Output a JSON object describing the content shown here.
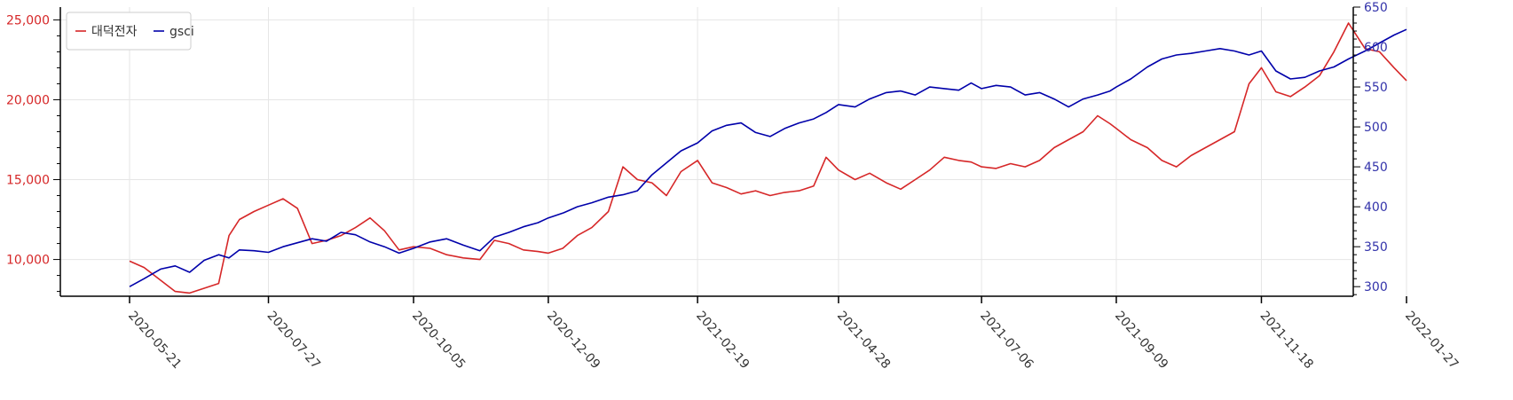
{
  "chart_data": {
    "type": "line",
    "title": "",
    "xlabel": "",
    "ylabel_left": "",
    "ylabel_right": "",
    "grid": true,
    "legend_position": "top-left",
    "x_ticks": [
      "2020-05-21",
      "2020-07-27",
      "2020-10-05",
      "2020-12-09",
      "2021-02-19",
      "2021-04-28",
      "2021-07-06",
      "2021-09-09",
      "2021-11-18",
      "2022-01-27"
    ],
    "y_left": {
      "lim": [
        7700,
        25800
      ],
      "ticks": [
        10000,
        15000,
        20000,
        25000
      ],
      "tick_labels": [
        "10,000",
        "15,000",
        "20,000",
        "25,000"
      ],
      "color": "#d62728"
    },
    "y_right": {
      "lim": [
        288,
        650
      ],
      "ticks": [
        300,
        350,
        400,
        450,
        500,
        550,
        600,
        650
      ],
      "tick_labels": [
        "300",
        "350",
        "400",
        "450",
        "500",
        "550",
        "600",
        "650"
      ],
      "color": "#3333aa"
    },
    "series": [
      {
        "name": "대덕전자",
        "axis": "left",
        "color": "#d62728",
        "x": [
          "2020-05-21",
          "2020-05-28",
          "2020-06-05",
          "2020-06-12",
          "2020-06-19",
          "2020-06-26",
          "2020-07-03",
          "2020-07-08",
          "2020-07-13",
          "2020-07-20",
          "2020-07-27",
          "2020-08-03",
          "2020-08-10",
          "2020-08-17",
          "2020-08-24",
          "2020-08-31",
          "2020-09-07",
          "2020-09-14",
          "2020-09-21",
          "2020-09-28",
          "2020-10-05",
          "2020-10-13",
          "2020-10-21",
          "2020-10-29",
          "2020-11-06",
          "2020-11-13",
          "2020-11-20",
          "2020-11-27",
          "2020-12-04",
          "2020-12-09",
          "2020-12-16",
          "2020-12-23",
          "2020-12-30",
          "2021-01-07",
          "2021-01-14",
          "2021-01-21",
          "2021-01-28",
          "2021-02-04",
          "2021-02-11",
          "2021-02-19",
          "2021-02-26",
          "2021-03-05",
          "2021-03-12",
          "2021-03-19",
          "2021-03-26",
          "2021-04-02",
          "2021-04-09",
          "2021-04-16",
          "2021-04-22",
          "2021-04-28",
          "2021-05-06",
          "2021-05-13",
          "2021-05-21",
          "2021-05-28",
          "2021-06-04",
          "2021-06-11",
          "2021-06-18",
          "2021-06-25",
          "2021-07-01",
          "2021-07-06",
          "2021-07-13",
          "2021-07-20",
          "2021-07-27",
          "2021-08-03",
          "2021-08-10",
          "2021-08-17",
          "2021-08-24",
          "2021-08-31",
          "2021-09-06",
          "2021-09-09",
          "2021-09-16",
          "2021-09-24",
          "2021-10-01",
          "2021-10-08",
          "2021-10-15",
          "2021-10-22",
          "2021-10-29",
          "2021-11-05",
          "2021-11-12",
          "2021-11-18",
          "2021-11-25",
          "2021-12-02",
          "2021-12-09",
          "2021-12-16",
          "2021-12-23",
          "2021-12-30",
          "2022-01-07",
          "2022-01-14",
          "2022-01-21",
          "2022-01-27"
        ],
        "values": [
          9900,
          9500,
          8700,
          8000,
          7900,
          8200,
          8500,
          11500,
          12500,
          13000,
          13400,
          13800,
          13200,
          11000,
          11200,
          11500,
          12000,
          12600,
          11800,
          10600,
          10800,
          10700,
          10300,
          10100,
          10000,
          11200,
          11000,
          10600,
          10500,
          10400,
          10700,
          11500,
          12000,
          13000,
          15800,
          15000,
          14800,
          14000,
          15500,
          16200,
          14800,
          14500,
          14100,
          14300,
          14000,
          14200,
          14300,
          14600,
          16400,
          15600,
          15000,
          15400,
          14800,
          14400,
          15000,
          15600,
          16400,
          16200,
          16100,
          15800,
          15700,
          16000,
          15800,
          16200,
          17000,
          17500,
          18000,
          19000,
          18500,
          18200,
          17500,
          17000,
          16200,
          15800,
          16500,
          17000,
          17500,
          18000,
          21000,
          22000,
          20500,
          20200,
          20800,
          21500,
          23000,
          24800,
          23200,
          23000,
          22000,
          21200
        ]
      },
      {
        "name": "gsci",
        "axis": "right",
        "color": "#0000aa",
        "x": [
          "2020-05-21",
          "2020-05-28",
          "2020-06-05",
          "2020-06-12",
          "2020-06-19",
          "2020-06-26",
          "2020-07-03",
          "2020-07-08",
          "2020-07-13",
          "2020-07-20",
          "2020-07-27",
          "2020-08-03",
          "2020-08-10",
          "2020-08-17",
          "2020-08-24",
          "2020-08-31",
          "2020-09-07",
          "2020-09-14",
          "2020-09-21",
          "2020-09-28",
          "2020-10-05",
          "2020-10-13",
          "2020-10-21",
          "2020-10-29",
          "2020-11-06",
          "2020-11-13",
          "2020-11-20",
          "2020-11-27",
          "2020-12-04",
          "2020-12-09",
          "2020-12-16",
          "2020-12-23",
          "2020-12-30",
          "2021-01-07",
          "2021-01-14",
          "2021-01-21",
          "2021-01-28",
          "2021-02-04",
          "2021-02-11",
          "2021-02-19",
          "2021-02-26",
          "2021-03-05",
          "2021-03-12",
          "2021-03-19",
          "2021-03-26",
          "2021-04-02",
          "2021-04-09",
          "2021-04-16",
          "2021-04-22",
          "2021-04-28",
          "2021-05-06",
          "2021-05-13",
          "2021-05-21",
          "2021-05-28",
          "2021-06-04",
          "2021-06-11",
          "2021-06-18",
          "2021-06-25",
          "2021-07-01",
          "2021-07-06",
          "2021-07-13",
          "2021-07-20",
          "2021-07-27",
          "2021-08-03",
          "2021-08-10",
          "2021-08-17",
          "2021-08-24",
          "2021-08-31",
          "2021-09-06",
          "2021-09-09",
          "2021-09-16",
          "2021-09-24",
          "2021-10-01",
          "2021-10-08",
          "2021-10-15",
          "2021-10-22",
          "2021-10-29",
          "2021-11-05",
          "2021-11-12",
          "2021-11-18",
          "2021-11-25",
          "2021-12-02",
          "2021-12-09",
          "2021-12-16",
          "2021-12-23",
          "2021-12-30",
          "2022-01-07",
          "2022-01-14",
          "2022-01-21",
          "2022-01-27"
        ],
        "values": [
          300,
          310,
          322,
          326,
          318,
          333,
          340,
          336,
          346,
          345,
          343,
          350,
          355,
          360,
          357,
          368,
          365,
          356,
          350,
          342,
          348,
          356,
          360,
          352,
          345,
          362,
          368,
          375,
          380,
          386,
          392,
          400,
          405,
          412,
          415,
          420,
          440,
          455,
          470,
          480,
          495,
          502,
          505,
          493,
          488,
          498,
          505,
          510,
          518,
          528,
          525,
          535,
          543,
          545,
          540,
          550,
          548,
          546,
          555,
          548,
          552,
          550,
          540,
          543,
          535,
          525,
          535,
          540,
          545,
          550,
          560,
          575,
          585,
          590,
          592,
          595,
          598,
          595,
          590,
          595,
          570,
          560,
          562,
          570,
          575,
          585,
          595,
          605,
          615,
          622
        ]
      }
    ]
  }
}
